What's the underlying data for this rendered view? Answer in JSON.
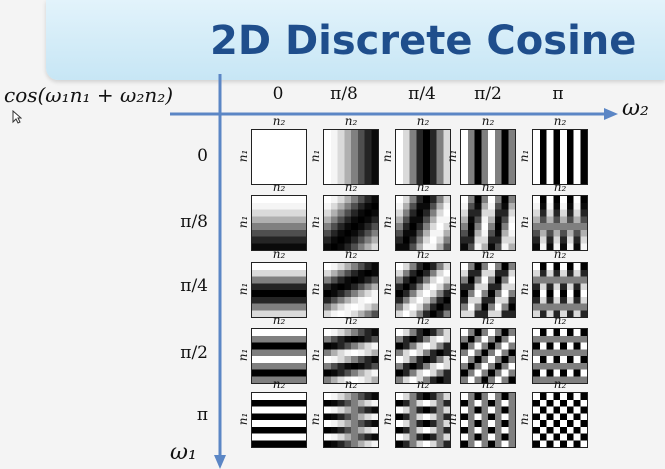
{
  "title": "2D Discrete Cosine",
  "formula": "cos(ω₁n₁ + ω₂n₂)",
  "axes": {
    "horizontal": "ω₂",
    "vertical": "ω₁"
  },
  "column_labels": [
    "0",
    "π/8",
    "π/4",
    "π/2",
    "π"
  ],
  "row_labels": [
    "0",
    "π/8",
    "π/4",
    "π/2",
    "π"
  ],
  "frequencies": [
    0,
    0.125,
    0.25,
    0.5,
    1
  ],
  "tile_axis_top": "n₂",
  "tile_axis_side": "n₁",
  "grid_samples": 8,
  "colors": {
    "axis": "#5b86c5",
    "title": "#1f4e8c"
  },
  "icons": {
    "cursor": "mouse-pointer-icon"
  }
}
